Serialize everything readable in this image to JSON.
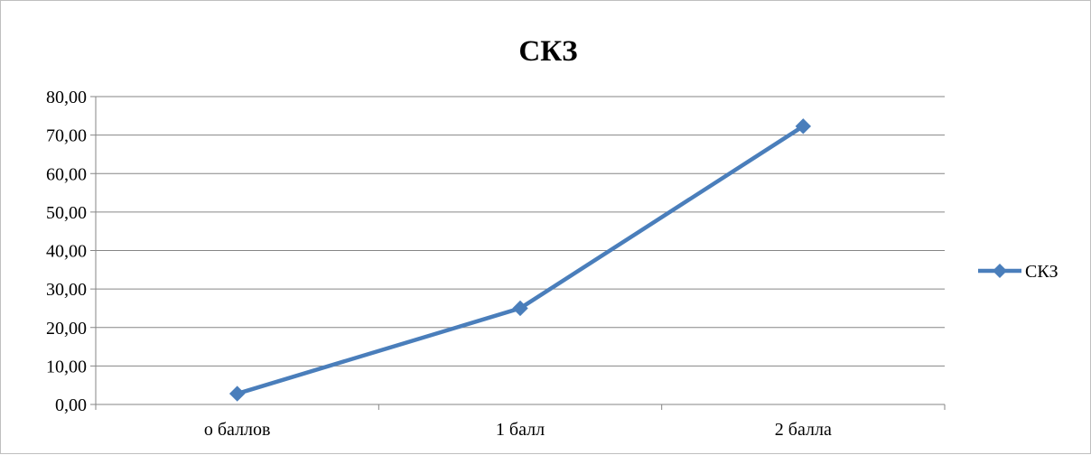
{
  "chart_data": {
    "type": "line",
    "title": "СКЗ",
    "categories": [
      "о баллов",
      "1 балл",
      "2 балла"
    ],
    "series": [
      {
        "name": "СКЗ",
        "values": [
          2.8,
          25.0,
          72.3
        ],
        "color": "#4a7ebb",
        "marker": "diamond"
      }
    ],
    "y_ticks": [
      "0,00",
      "10,00",
      "20,00",
      "30,00",
      "40,00",
      "50,00",
      "60,00",
      "70,00",
      "80,00"
    ],
    "ylim": [
      0,
      80
    ],
    "y_step": 10,
    "grid": true,
    "legend_position": "right",
    "xlabel": "",
    "ylabel": ""
  }
}
